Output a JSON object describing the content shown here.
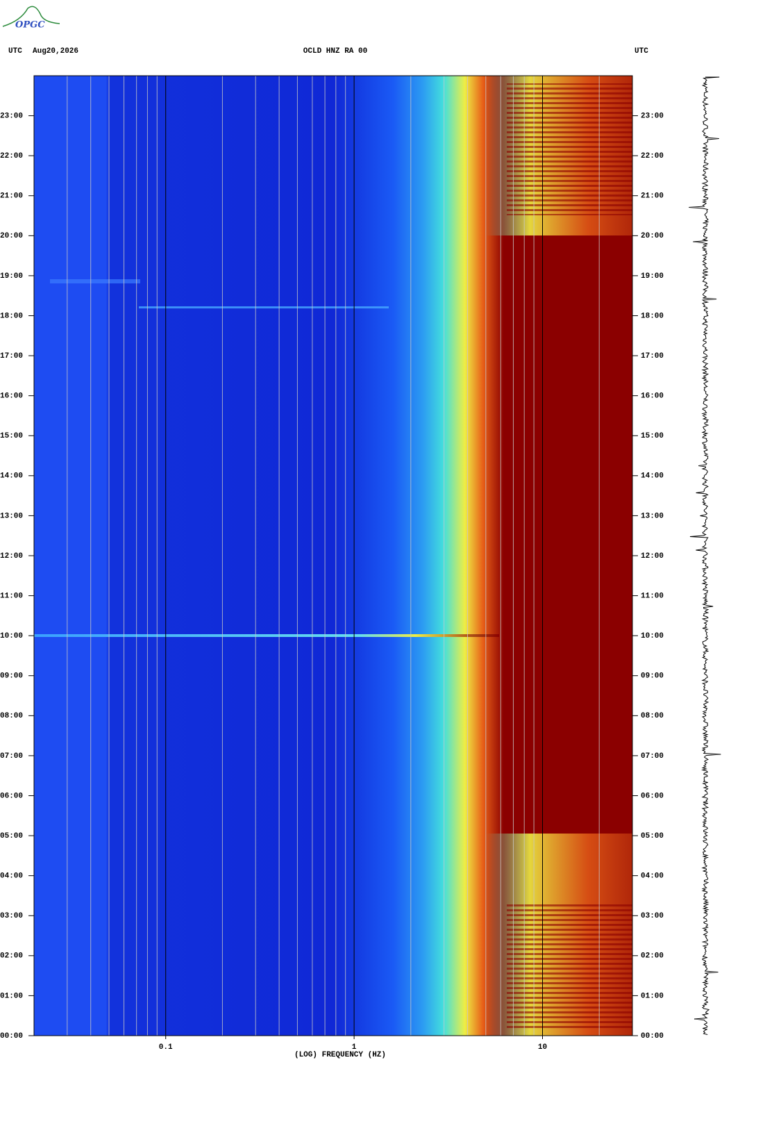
{
  "logo": "OPGC",
  "chart_data": {
    "type": "spectrogram",
    "tz_left": "UTC",
    "date": "Aug20,2026",
    "title": "OCLD HNZ RA 00",
    "tz_right": "UTC",
    "xlabel": "(LOG) FREQUENCY (HZ)",
    "xscale": "log",
    "xlim": [
      0.02,
      30
    ],
    "xticks": [
      0.1,
      1,
      10
    ],
    "xminor": [
      0.03,
      0.04,
      0.05,
      0.06,
      0.07,
      0.08,
      0.09,
      0.2,
      0.3,
      0.4,
      0.5,
      0.6,
      0.7,
      0.8,
      0.9,
      2,
      3,
      4,
      5,
      6,
      7,
      8,
      9,
      20,
      30
    ],
    "ylim": [
      0,
      24
    ],
    "yticks": [
      {
        "value": 0,
        "label": "00:00"
      },
      {
        "value": 1,
        "label": "01:00"
      },
      {
        "value": 2,
        "label": "02:00"
      },
      {
        "value": 3,
        "label": "03:00"
      },
      {
        "value": 4,
        "label": "04:00"
      },
      {
        "value": 5,
        "label": "05:00"
      },
      {
        "value": 6,
        "label": "06:00"
      },
      {
        "value": 7,
        "label": "07:00"
      },
      {
        "value": 8,
        "label": "08:00"
      },
      {
        "value": 9,
        "label": "09:00"
      },
      {
        "value": 10,
        "label": "10:00"
      },
      {
        "value": 11,
        "label": "11:00"
      },
      {
        "value": 12,
        "label": "12:00"
      },
      {
        "value": 13,
        "label": "13:00"
      },
      {
        "value": 14,
        "label": "14:00"
      },
      {
        "value": 15,
        "label": "15:00"
      },
      {
        "value": 16,
        "label": "16:00"
      },
      {
        "value": 17,
        "label": "17:00"
      },
      {
        "value": 18,
        "label": "18:00"
      },
      {
        "value": 19,
        "label": "19:00"
      },
      {
        "value": 20,
        "label": "20:00"
      },
      {
        "value": 21,
        "label": "21:00"
      },
      {
        "value": 22,
        "label": "22:00"
      },
      {
        "value": 23,
        "label": "23:00"
      }
    ]
  }
}
